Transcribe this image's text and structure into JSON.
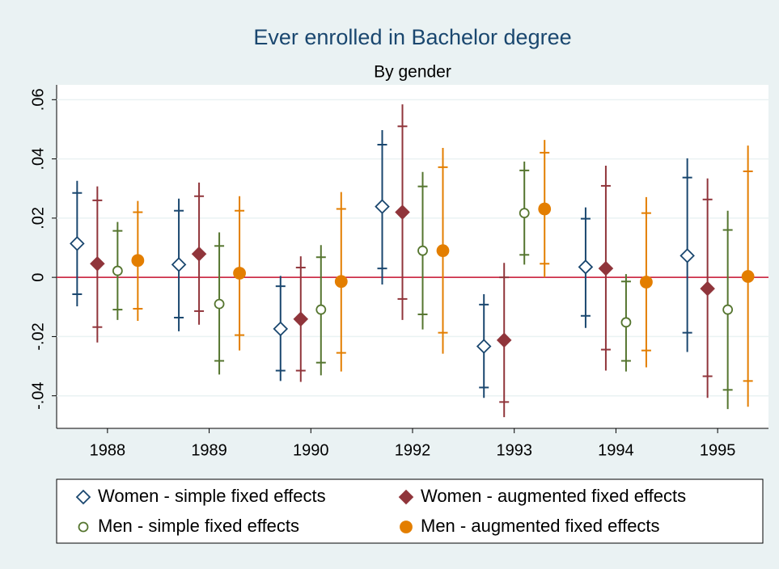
{
  "chart_data": {
    "type": "errorbar",
    "title": "Ever enrolled in Bachelor degree",
    "subtitle": "By gender",
    "categories": [
      "1988",
      "1989",
      "1990",
      "1992",
      "1993",
      "1994",
      "1995"
    ],
    "ylim": [
      -0.051,
      0.065
    ],
    "yticks": [
      {
        "value": 0.06,
        "label": ".06"
      },
      {
        "value": 0.04,
        "label": ".04"
      },
      {
        "value": 0.02,
        "label": ".02"
      },
      0,
      {
        "value": -0.02,
        "label": "-.02"
      },
      {
        "value": -0.04,
        "label": "-.04"
      }
    ],
    "grid": true,
    "reference_line": 0,
    "reference_color": "#c8102e",
    "legend_position": "bottom",
    "series": [
      {
        "name": "Women - simple fixed effects",
        "color": "#1a476f",
        "marker": "diamond",
        "filled": false,
        "values": [
          0.0114,
          0.0043,
          -0.0174,
          0.0239,
          -0.0233,
          0.0035,
          0.0073
        ],
        "ci95_low": [
          -0.0098,
          -0.0182,
          -0.035,
          -0.0024,
          -0.0407,
          -0.0171,
          -0.0252
        ],
        "ci95_high": [
          0.0326,
          0.0266,
          0.0005,
          0.0497,
          -0.0057,
          0.0236,
          0.0402
        ],
        "ci90_low": [
          -0.0057,
          -0.0136,
          -0.0315,
          0.003,
          -0.0372,
          -0.013,
          -0.0187
        ],
        "ci90_high": [
          0.0285,
          0.0225,
          -0.003,
          0.0448,
          -0.0092,
          0.0198,
          0.0337
        ]
      },
      {
        "name": "Women - augmented fixed effects",
        "color": "#90353b",
        "marker": "diamond",
        "filled": true,
        "values": [
          0.0046,
          0.0079,
          -0.0141,
          0.022,
          -0.0212,
          0.003,
          -0.0038
        ],
        "ci95_low": [
          -0.022,
          -0.016,
          -0.0353,
          -0.0144,
          -0.0472,
          -0.0315,
          -0.0407
        ],
        "ci95_high": [
          0.0307,
          0.032,
          0.0071,
          0.0584,
          0.0049,
          0.0377,
          0.0334
        ],
        "ci90_low": [
          -0.0168,
          -0.0114,
          -0.0315,
          -0.0073,
          -0.0421,
          -0.0244,
          -0.0334
        ],
        "ci90_high": [
          0.026,
          0.0274,
          0.0033,
          0.051,
          0,
          0.0309,
          0.0263
        ]
      },
      {
        "name": "Men - simple fixed effects",
        "color": "#55752f",
        "marker": "circle",
        "filled": false,
        "values": [
          0.0022,
          -0.009,
          -0.0109,
          0.009,
          0.0217,
          -0.0152,
          -0.0109
        ],
        "ci95_low": [
          -0.0144,
          -0.0328,
          -0.0331,
          -0.0176,
          0.0043,
          -0.0318,
          -0.0445
        ],
        "ci95_high": [
          0.0187,
          0.0152,
          0.0109,
          0.0356,
          0.0391,
          0.0011,
          0.0225
        ],
        "ci90_low": [
          -0.0109,
          -0.0282,
          -0.0288,
          -0.0125,
          0.0076,
          -0.0282,
          -0.038
        ],
        "ci90_high": [
          0.0157,
          0.0106,
          0.0068,
          0.0307,
          0.0361,
          -0.0014,
          0.016
        ]
      },
      {
        "name": "Men - augmented fixed effects",
        "color": "#e37e00",
        "marker": "circle",
        "filled": true,
        "values": [
          0.0057,
          0.0014,
          -0.0014,
          0.009,
          0.0231,
          -0.0016,
          0.0003
        ],
        "ci95_low": [
          -0.0147,
          -0.0247,
          -0.0318,
          -0.0258,
          0,
          -0.0304,
          -0.0437
        ],
        "ci95_high": [
          0.0258,
          0.0274,
          0.0288,
          0.0437,
          0.0464,
          0.0271,
          0.0445
        ],
        "ci90_low": [
          -0.0106,
          -0.0195,
          -0.0255,
          -0.0187,
          0.0046,
          -0.0247,
          -0.035
        ],
        "ci90_high": [
          0.022,
          0.0225,
          0.0231,
          0.0372,
          0.0421,
          0.0217,
          0.0358
        ]
      }
    ]
  }
}
